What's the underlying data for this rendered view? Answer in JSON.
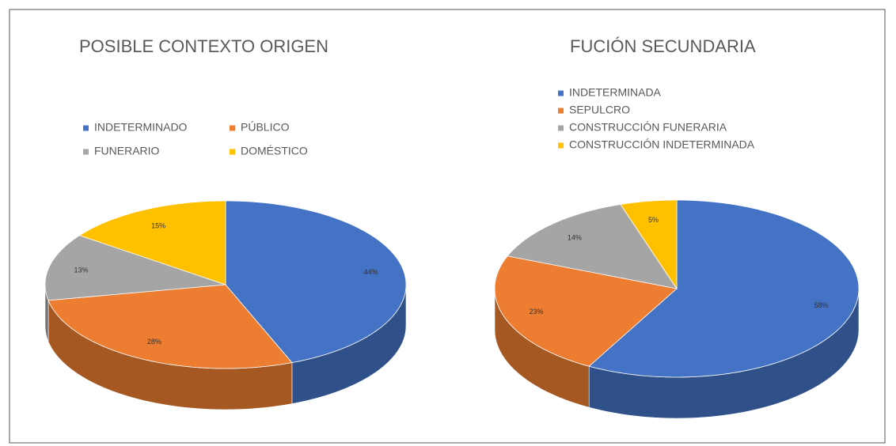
{
  "chart_data": [
    {
      "type": "pie",
      "title": "POSIBLE CONTEXTO ORIGEN",
      "categories": [
        "INDETERMINADO",
        "PÚBLICO",
        "FUNERARIO",
        "DOMÉSTICO"
      ],
      "values": [
        44,
        28,
        13,
        15
      ],
      "value_labels": [
        "44%",
        "28%",
        "13%",
        "15%"
      ],
      "colors": [
        "#4472c4",
        "#ed7d31",
        "#a5a5a5",
        "#ffc000"
      ]
    },
    {
      "type": "pie",
      "title": "FUCIÓN SECUNDARIA",
      "categories": [
        "INDETERMINADA",
        "SEPULCRO",
        "CONSTRUCCIÓN FUNERARIA",
        "CONSTRUCCIÓN INDETERMINADA"
      ],
      "values": [
        58,
        23,
        14,
        5
      ],
      "value_labels": [
        "58%",
        "23%",
        "14%",
        "5%"
      ],
      "colors": [
        "#4472c4",
        "#ed7d31",
        "#a5a5a5",
        "#ffc000"
      ]
    }
  ]
}
